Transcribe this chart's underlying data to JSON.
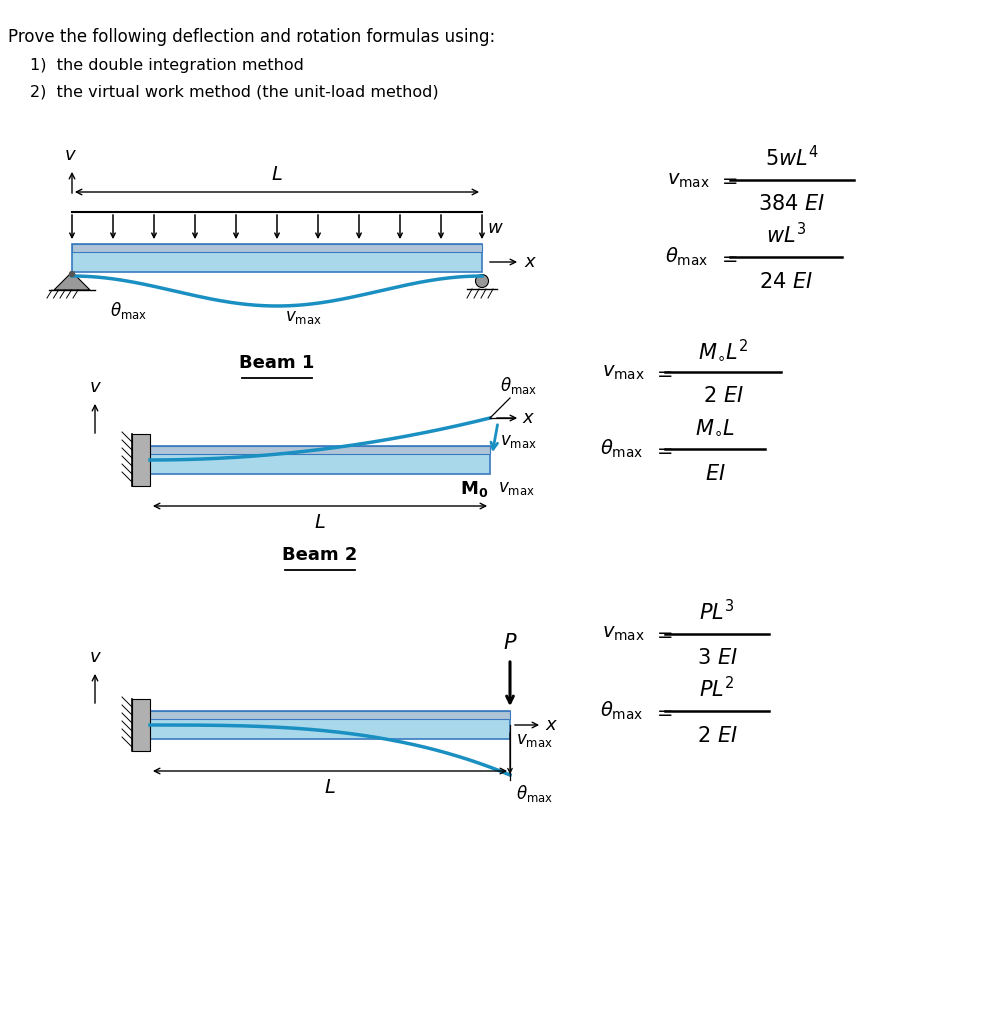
{
  "title_text": "Prove the following deflection and rotation formulas using:",
  "item1": "1)  the double integration method",
  "item2": "2)  the virtual work method (the unit-load method)",
  "beam1_label": "Beam 1",
  "beam2_label": "Beam 2",
  "bg_color": "#ffffff",
  "beam_color_light": "#a8d8ea",
  "beam_color_top": "#b0c4d8",
  "deflection_color": "#1a8fc1"
}
